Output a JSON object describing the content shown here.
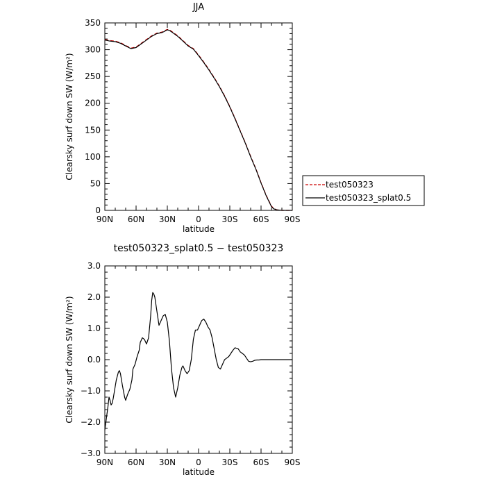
{
  "chart_data": [
    {
      "type": "line",
      "title": "JJA",
      "xlabel": "latitude",
      "ylabel": "Clearsky surf down SW (W/m²)",
      "x_ticks": [
        "90N",
        "60N",
        "30N",
        "0",
        "30S",
        "60S",
        "90S"
      ],
      "y_ticks": [
        "0",
        "50",
        "100",
        "150",
        "200",
        "250",
        "300",
        "350"
      ],
      "xlim": [
        90,
        -90
      ],
      "ylim": [
        0,
        350
      ],
      "legend_position": "right",
      "x": [
        90,
        85,
        80,
        75,
        70,
        65,
        60,
        55,
        50,
        45,
        40,
        35,
        32,
        30,
        28,
        25,
        20,
        15,
        10,
        5,
        0,
        -5,
        -10,
        -15,
        -20,
        -25,
        -30,
        -35,
        -40,
        -45,
        -50,
        -55,
        -60,
        -65,
        -70,
        -72,
        -75,
        -80,
        -85,
        -90
      ],
      "series": [
        {
          "name": "test050323",
          "color": "#cc0000",
          "dash": "dashed",
          "values": [
            319,
            317,
            316,
            313,
            308,
            303,
            305,
            312,
            319,
            326,
            331,
            333,
            336,
            338,
            337,
            333,
            326,
            317,
            308,
            302,
            290,
            277,
            263,
            248,
            232,
            214,
            194,
            172,
            149,
            126,
            101,
            78,
            52,
            28,
            8,
            4,
            1,
            0,
            0,
            0
          ]
        },
        {
          "name": "test050323_splat0.5",
          "color": "#000000",
          "dash": "solid",
          "values": [
            318,
            316,
            315,
            312,
            307,
            302,
            304,
            311,
            318,
            325,
            330,
            332,
            335,
            337,
            336,
            332,
            325,
            316,
            307,
            301,
            289,
            276,
            262,
            247,
            231,
            213,
            193,
            171,
            148,
            125,
            100,
            77,
            51,
            27,
            7,
            3,
            1,
            0,
            0,
            0
          ]
        }
      ]
    },
    {
      "type": "line",
      "title": "test050323_splat0.5 − test050323",
      "xlabel": "latitude",
      "ylabel": "Clearsky surf down SW (W/m²)",
      "x_ticks": [
        "90N",
        "60N",
        "30N",
        "0",
        "30S",
        "60S",
        "90S"
      ],
      "y_ticks": [
        "−3.0",
        "−2.0",
        "−1.0",
        "0.0",
        "1.0",
        "2.0",
        "3.0"
      ],
      "xlim": [
        90,
        -90
      ],
      "ylim": [
        -3,
        3
      ],
      "x": [
        90,
        89,
        87,
        86,
        85,
        84,
        83,
        82,
        81,
        79,
        77,
        76,
        75,
        73,
        71,
        70,
        68,
        66,
        64,
        63,
        61,
        59,
        57,
        56,
        54,
        52,
        50,
        48,
        46,
        45,
        44,
        43,
        42,
        40,
        38,
        36,
        34,
        32,
        30,
        28,
        26,
        24,
        22,
        20,
        18,
        16,
        15,
        13,
        11,
        9,
        7,
        5,
        3,
        1,
        -1,
        -3,
        -5,
        -7,
        -9,
        -11,
        -13,
        -15,
        -17,
        -19,
        -21,
        -23,
        -25,
        -27,
        -29,
        -31,
        -33,
        -35,
        -38,
        -40,
        -42,
        -44,
        -46,
        -48,
        -50,
        -52,
        -54,
        -56,
        -58,
        -60,
        -62,
        -65,
        -68,
        -72,
        -76,
        -80,
        -84,
        -88,
        -90
      ],
      "series": [
        {
          "name": "",
          "color": "#000000",
          "values": [
            -2.25,
            -2.0,
            -1.5,
            -1.2,
            -1.3,
            -1.45,
            -1.4,
            -1.25,
            -1.05,
            -0.65,
            -0.4,
            -0.35,
            -0.45,
            -0.85,
            -1.2,
            -1.3,
            -1.1,
            -0.95,
            -0.65,
            -0.3,
            -0.15,
            0.1,
            0.3,
            0.55,
            0.7,
            0.65,
            0.5,
            0.7,
            1.4,
            1.9,
            2.15,
            2.1,
            2.0,
            1.55,
            1.1,
            1.25,
            1.4,
            1.45,
            1.2,
            0.6,
            -0.3,
            -0.9,
            -1.2,
            -0.9,
            -0.5,
            -0.25,
            -0.2,
            -0.35,
            -0.45,
            -0.35,
            0.0,
            0.65,
            0.95,
            0.95,
            1.1,
            1.25,
            1.3,
            1.2,
            1.05,
            0.95,
            0.7,
            0.35,
            0.0,
            -0.25,
            -0.3,
            -0.15,
            0.0,
            0.05,
            0.1,
            0.2,
            0.3,
            0.38,
            0.35,
            0.25,
            0.2,
            0.15,
            0.05,
            -0.05,
            -0.07,
            -0.05,
            -0.02,
            -0.01,
            -0.01,
            0.0,
            0.0,
            0.0,
            0.0,
            0.0,
            0.0,
            0.0,
            0.0,
            0.0,
            0.0
          ]
        }
      ]
    }
  ]
}
